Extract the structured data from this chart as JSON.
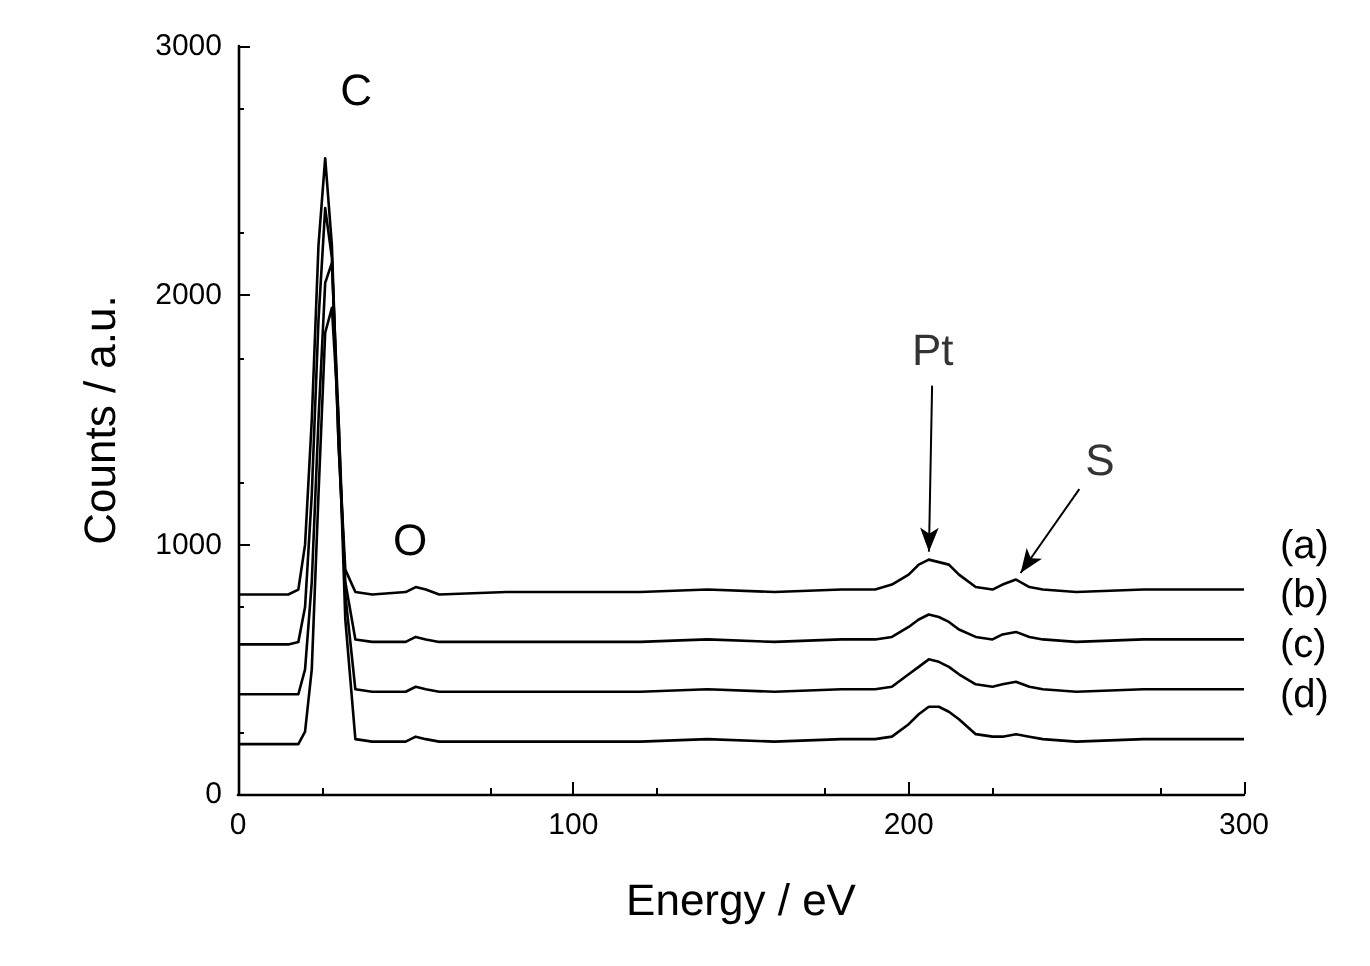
{
  "chart_data": {
    "type": "line",
    "xlabel": "Energy / eV",
    "ylabel": "Counts / a.u.",
    "xlim": [
      0,
      300
    ],
    "xticks": [
      0,
      100,
      200,
      300
    ],
    "ylim": [
      0,
      3000
    ],
    "yticks": [
      0,
      1000,
      2000,
      3000
    ],
    "grid": false,
    "x": [
      0,
      10,
      15,
      18,
      20,
      22,
      24,
      26,
      28,
      30,
      32,
      35,
      40,
      50,
      53,
      56,
      60,
      80,
      100,
      120,
      140,
      160,
      180,
      190,
      195,
      200,
      203,
      206,
      209,
      212,
      215,
      220,
      225,
      228,
      232,
      236,
      240,
      250,
      270,
      300
    ],
    "series": [
      {
        "name": "(a)",
        "color": "#000000",
        "values": [
          800,
          800,
          800,
          820,
          1000,
          1500,
          2200,
          2550,
          2200,
          1400,
          900,
          810,
          800,
          810,
          830,
          820,
          800,
          810,
          810,
          810,
          820,
          810,
          820,
          820,
          840,
          880,
          920,
          940,
          930,
          920,
          880,
          830,
          820,
          840,
          860,
          830,
          820,
          810,
          820,
          820
        ]
      },
      {
        "name": "(b)",
        "color": "#000000",
        "values": [
          600,
          600,
          600,
          610,
          750,
          1200,
          1900,
          2350,
          2150,
          1400,
          850,
          620,
          610,
          610,
          630,
          620,
          610,
          610,
          610,
          610,
          620,
          610,
          620,
          620,
          630,
          670,
          700,
          720,
          710,
          690,
          660,
          630,
          620,
          640,
          650,
          630,
          620,
          610,
          620,
          620
        ]
      },
      {
        "name": "(c)",
        "color": "#000000",
        "values": [
          400,
          400,
          400,
          400,
          500,
          850,
          1500,
          2050,
          2130,
          1500,
          800,
          420,
          410,
          410,
          430,
          420,
          410,
          410,
          410,
          410,
          420,
          410,
          420,
          420,
          430,
          480,
          510,
          540,
          530,
          510,
          480,
          440,
          430,
          440,
          450,
          430,
          420,
          410,
          420,
          420
        ]
      },
      {
        "name": "(d)",
        "color": "#000000",
        "values": [
          200,
          200,
          200,
          200,
          250,
          500,
          1200,
          1850,
          1950,
          1500,
          700,
          220,
          210,
          210,
          230,
          220,
          210,
          210,
          210,
          210,
          220,
          210,
          220,
          220,
          230,
          280,
          320,
          350,
          350,
          330,
          300,
          240,
          230,
          230,
          240,
          230,
          220,
          210,
          220,
          220
        ]
      }
    ],
    "annotations": [
      "C",
      "O",
      {
        "text": "Pt",
        "x": 206,
        "y": 940
      },
      {
        "text": "S",
        "x": 232,
        "y": 860
      }
    ]
  }
}
